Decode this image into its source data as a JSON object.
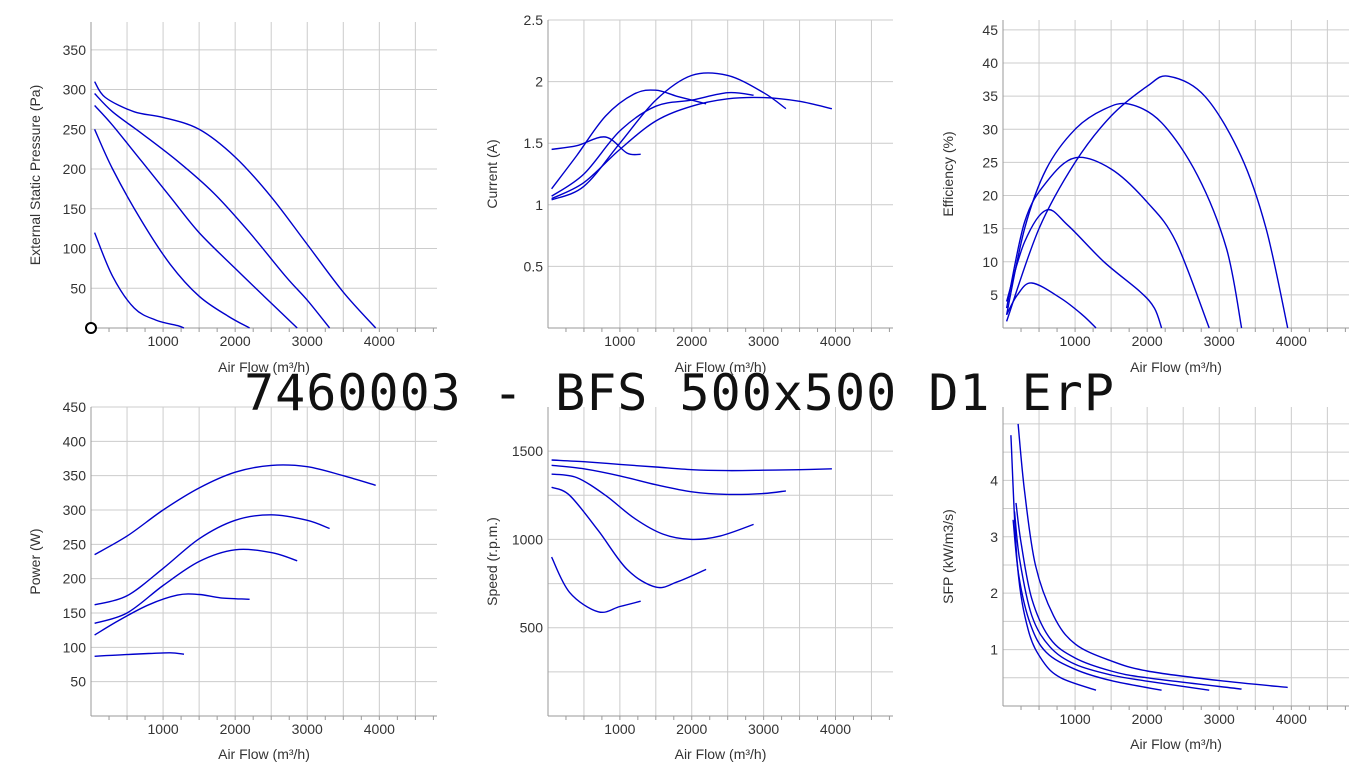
{
  "title": "7460003 -  BFS 500x500 D1 ErP",
  "colors": {
    "curve": "#0000cc",
    "grid": "#cccccc",
    "axis": "#999999",
    "text": "#333333"
  },
  "chart_data": [
    {
      "id": "pressure",
      "type": "line",
      "xlabel": "Air Flow (m³/h)",
      "ylabel": "External Static Pressure (Pa)",
      "xlim": [
        0,
        4800
      ],
      "ylim": [
        0,
        385
      ],
      "xticks": [
        1000,
        2000,
        3000,
        4000
      ],
      "yticks": [
        50,
        100,
        150,
        200,
        250,
        300,
        350
      ],
      "xgrid": [
        500,
        1000,
        1500,
        2000,
        2500,
        3000,
        3500,
        4000,
        4500
      ],
      "ygrid": [
        50,
        100,
        150,
        200,
        250,
        300,
        350
      ],
      "marker": {
        "x": 0,
        "y": 0
      },
      "series": [
        {
          "x": [
            50,
            200,
            600,
            1000,
            1500,
            2000,
            2500,
            3000,
            3500,
            3950
          ],
          "y": [
            310,
            290,
            272,
            265,
            250,
            215,
            165,
            105,
            45,
            0
          ]
        },
        {
          "x": [
            50,
            300,
            700,
            1200,
            1700,
            2200,
            2700,
            3000,
            3310
          ],
          "y": [
            295,
            272,
            245,
            210,
            170,
            120,
            65,
            35,
            0
          ]
        },
        {
          "x": [
            50,
            300,
            700,
            1100,
            1500,
            2000,
            2400,
            2860
          ],
          "y": [
            280,
            255,
            210,
            165,
            120,
            75,
            40,
            0
          ]
        },
        {
          "x": [
            50,
            300,
            700,
            1100,
            1500,
            1900,
            2200
          ],
          "y": [
            250,
            200,
            135,
            80,
            40,
            15,
            0
          ]
        },
        {
          "x": [
            50,
            300,
            600,
            900,
            1200,
            1290
          ],
          "y": [
            120,
            65,
            25,
            10,
            3,
            0
          ]
        }
      ]
    },
    {
      "id": "current",
      "type": "line",
      "xlabel": "Air Flow (m³/h)",
      "ylabel": "Current (A)",
      "xlim": [
        0,
        4800
      ],
      "ylim": [
        0,
        2.5
      ],
      "xticks": [
        1000,
        2000,
        3000,
        4000
      ],
      "yticks": [
        0.5,
        1,
        1.5,
        2,
        2.5
      ],
      "xgrid": [
        500,
        1000,
        1500,
        2000,
        2500,
        3000,
        3500,
        4000,
        4500
      ],
      "ygrid": [
        0.5,
        1,
        1.5,
        2,
        2.5
      ],
      "series": [
        {
          "x": [
            50,
            500,
            1000,
            1500,
            2000,
            2500,
            3000,
            3500,
            3950
          ],
          "y": [
            1.05,
            1.18,
            1.45,
            1.68,
            1.8,
            1.86,
            1.87,
            1.84,
            1.78
          ]
        },
        {
          "x": [
            50,
            500,
            1000,
            1500,
            2000,
            2500,
            3000,
            3310
          ],
          "y": [
            1.04,
            1.15,
            1.5,
            1.85,
            2.05,
            2.05,
            1.91,
            1.78
          ]
        },
        {
          "x": [
            50,
            500,
            1000,
            1500,
            2000,
            2500,
            2860
          ],
          "y": [
            1.07,
            1.25,
            1.6,
            1.8,
            1.85,
            1.91,
            1.89
          ]
        },
        {
          "x": [
            50,
            400,
            800,
            1200,
            1500,
            1800,
            2200
          ],
          "y": [
            1.13,
            1.4,
            1.72,
            1.9,
            1.93,
            1.88,
            1.82
          ]
        },
        {
          "x": [
            50,
            400,
            800,
            1100,
            1290
          ],
          "y": [
            1.45,
            1.48,
            1.55,
            1.42,
            1.41
          ]
        }
      ]
    },
    {
      "id": "efficiency",
      "type": "line",
      "xlabel": "Air Flow (m³/h)",
      "ylabel": "Efficiency (%)",
      "xlim": [
        0,
        4800
      ],
      "ylim": [
        0,
        46.5
      ],
      "xticks": [
        1000,
        2000,
        3000,
        4000
      ],
      "yticks": [
        5,
        10,
        15,
        20,
        25,
        30,
        35,
        40,
        45
      ],
      "xgrid": [
        500,
        1000,
        1500,
        2000,
        2500,
        3000,
        3500,
        4000,
        4500
      ],
      "ygrid": [
        5,
        10,
        15,
        20,
        25,
        30,
        35,
        40,
        45
      ],
      "series": [
        {
          "x": [
            50,
            500,
            1000,
            1500,
            2000,
            2300,
            2800,
            3300,
            3650,
            3950
          ],
          "y": [
            1,
            15,
            25,
            32,
            36.5,
            38,
            35,
            26,
            15,
            0
          ]
        },
        {
          "x": [
            50,
            300,
            600,
            1000,
            1400,
            1750,
            2200,
            2700,
            3100,
            3310
          ],
          "y": [
            2,
            15,
            24,
            30,
            33,
            33.8,
            31,
            23,
            12,
            0
          ]
        },
        {
          "x": [
            50,
            300,
            600,
            1000,
            1500,
            2000,
            2400,
            2860
          ],
          "y": [
            3,
            16,
            22,
            25.7,
            24,
            19,
            13,
            0
          ]
        },
        {
          "x": [
            50,
            300,
            600,
            900,
            1400,
            1900,
            2100,
            2200
          ],
          "y": [
            4,
            13,
            17.8,
            15.5,
            10,
            5.5,
            3,
            0
          ]
        },
        {
          "x": [
            50,
            200,
            400,
            800,
            1100,
            1290
          ],
          "y": [
            2,
            5,
            6.8,
            4.5,
            2,
            0
          ]
        }
      ]
    },
    {
      "id": "power",
      "type": "line",
      "xlabel": "Air Flow (m³/h)",
      "ylabel": "Power (W)",
      "xlim": [
        0,
        4800
      ],
      "ylim": [
        0,
        450
      ],
      "xticks": [
        1000,
        2000,
        3000,
        4000
      ],
      "yticks": [
        50,
        100,
        150,
        200,
        250,
        300,
        350,
        400,
        450
      ],
      "xgrid": [
        500,
        1000,
        1500,
        2000,
        2500,
        3000,
        3500,
        4000,
        4500
      ],
      "ygrid": [
        50,
        100,
        150,
        200,
        250,
        300,
        350,
        400,
        450
      ],
      "series": [
        {
          "x": [
            50,
            500,
            1000,
            1500,
            2000,
            2500,
            3000,
            3500,
            3950
          ],
          "y": [
            235,
            262,
            300,
            332,
            355,
            365,
            363,
            350,
            336
          ]
        },
        {
          "x": [
            50,
            500,
            1000,
            1500,
            2000,
            2500,
            3000,
            3310
          ],
          "y": [
            162,
            175,
            215,
            258,
            285,
            293,
            285,
            273
          ]
        },
        {
          "x": [
            50,
            500,
            1000,
            1500,
            2000,
            2500,
            2860
          ],
          "y": [
            135,
            150,
            190,
            225,
            242,
            238,
            226
          ]
        },
        {
          "x": [
            50,
            400,
            800,
            1200,
            1500,
            1800,
            2200
          ],
          "y": [
            118,
            140,
            162,
            176,
            177,
            172,
            170
          ]
        },
        {
          "x": [
            50,
            400,
            800,
            1100,
            1290
          ],
          "y": [
            87,
            89,
            91,
            92,
            90
          ]
        }
      ]
    },
    {
      "id": "speed",
      "type": "line",
      "xlabel": "Air Flow (m³/h)",
      "ylabel": "Speed (r.p.m.)",
      "xlim": [
        0,
        4800
      ],
      "ylim": [
        0,
        1750
      ],
      "xticks": [
        1000,
        2000,
        3000,
        4000
      ],
      "yticks": [
        500,
        1000,
        1500
      ],
      "xgrid": [
        500,
        1000,
        1500,
        2000,
        2500,
        3000,
        3500,
        4000,
        4500
      ],
      "ygrid": [
        250,
        500,
        750,
        1000,
        1250,
        1500
      ],
      "series": [
        {
          "x": [
            50,
            500,
            1000,
            1500,
            2000,
            2500,
            3000,
            3500,
            3950
          ],
          "y": [
            1450,
            1440,
            1425,
            1410,
            1395,
            1390,
            1392,
            1395,
            1400
          ]
        },
        {
          "x": [
            50,
            500,
            1000,
            1500,
            2000,
            2500,
            3000,
            3310
          ],
          "y": [
            1420,
            1400,
            1360,
            1310,
            1270,
            1255,
            1260,
            1275
          ]
        },
        {
          "x": [
            50,
            400,
            800,
            1200,
            1600,
            2000,
            2400,
            2860
          ],
          "y": [
            1370,
            1350,
            1250,
            1120,
            1030,
            1000,
            1020,
            1085
          ]
        },
        {
          "x": [
            50,
            300,
            700,
            1100,
            1500,
            1800,
            2200
          ],
          "y": [
            1295,
            1250,
            1050,
            830,
            730,
            760,
            830
          ]
        },
        {
          "x": [
            50,
            300,
            700,
            1000,
            1290
          ],
          "y": [
            900,
            700,
            590,
            620,
            650
          ]
        }
      ]
    },
    {
      "id": "sfp",
      "type": "line",
      "xlabel": "Air Flow (m³/h)",
      "ylabel": "SFP (kW/m3/s)",
      "xlim": [
        0,
        4800
      ],
      "ylim": [
        0,
        5.3
      ],
      "xticks": [
        1000,
        2000,
        3000,
        4000
      ],
      "yticks": [
        1,
        2,
        3,
        4
      ],
      "xgrid": [
        500,
        1000,
        1500,
        2000,
        2500,
        3000,
        3500,
        4000,
        4500
      ],
      "ygrid": [
        0.5,
        1,
        1.5,
        2,
        2.5,
        3,
        3.5,
        4,
        4.5,
        5
      ],
      "series": [
        {
          "x": [
            210,
            300,
            450,
            700,
            1000,
            1500,
            2000,
            3000,
            3950
          ],
          "y": [
            5.0,
            3.8,
            2.5,
            1.6,
            1.1,
            0.8,
            0.62,
            0.45,
            0.33
          ]
        },
        {
          "x": [
            180,
            250,
            400,
            650,
            1000,
            1500,
            2000,
            3310
          ],
          "y": [
            3.6,
            2.9,
            1.9,
            1.2,
            0.85,
            0.62,
            0.5,
            0.3
          ]
        },
        {
          "x": [
            160,
            230,
            400,
            650,
            1000,
            1500,
            2000,
            2860
          ],
          "y": [
            3.45,
            2.6,
            1.6,
            1.05,
            0.74,
            0.55,
            0.44,
            0.28
          ]
        },
        {
          "x": [
            140,
            220,
            380,
            600,
            1000,
            1500,
            2200
          ],
          "y": [
            3.3,
            2.3,
            1.45,
            0.95,
            0.65,
            0.45,
            0.28
          ]
        },
        {
          "x": [
            110,
            200,
            350,
            550,
            800,
            1290
          ],
          "y": [
            4.8,
            2.5,
            1.35,
            0.8,
            0.5,
            0.28
          ]
        }
      ]
    }
  ]
}
